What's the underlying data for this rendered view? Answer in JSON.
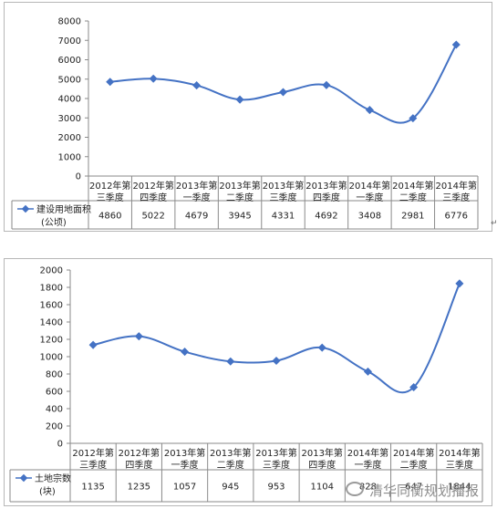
{
  "chart_data": [
    {
      "type": "line",
      "categories": [
        [
          "2012年第",
          "三季度"
        ],
        [
          "2012年第",
          "四季度"
        ],
        [
          "2013年第",
          "一季度"
        ],
        [
          "2013年第",
          "二季度"
        ],
        [
          "2013年第",
          "三季度"
        ],
        [
          "2013年第",
          "四季度"
        ],
        [
          "2014年第",
          "一季度"
        ],
        [
          "2014年第",
          "二季度"
        ],
        [
          "2014年第",
          "三季度"
        ]
      ],
      "series": [
        {
          "name": [
            "建设用地面积",
            "(公顷)"
          ],
          "values": [
            4860,
            5022,
            4679,
            3945,
            4331,
            4692,
            3408,
            2981,
            6776
          ],
          "color": "#4472C4"
        }
      ],
      "ylim": [
        0,
        8000
      ],
      "yticks": [
        0,
        1000,
        2000,
        3000,
        4000,
        5000,
        6000,
        7000,
        8000
      ],
      "legend": "data-table",
      "grid": false
    },
    {
      "type": "line",
      "categories": [
        [
          "2012年第",
          "三季度"
        ],
        [
          "2012年第",
          "四季度"
        ],
        [
          "2013年第",
          "一季度"
        ],
        [
          "2013年第",
          "二季度"
        ],
        [
          "2013年第",
          "三季度"
        ],
        [
          "2013年第",
          "四季度"
        ],
        [
          "2014年第",
          "一季度"
        ],
        [
          "2014年第",
          "二季度"
        ],
        [
          "2014年第",
          "三季度"
        ]
      ],
      "series": [
        {
          "name": [
            "土地宗数",
            "(块)"
          ],
          "values": [
            1135,
            1235,
            1057,
            945,
            953,
            1104,
            828,
            647,
            1844
          ],
          "color": "#4472C4"
        }
      ],
      "ylim": [
        0,
        2000
      ],
      "yticks": [
        0,
        200,
        400,
        600,
        800,
        1000,
        1200,
        1400,
        1600,
        1800,
        2000
      ],
      "legend": "data-table",
      "grid": false
    }
  ],
  "watermark": {
    "text": "清华同衡规划播报",
    "icon": "wechat-icon"
  }
}
